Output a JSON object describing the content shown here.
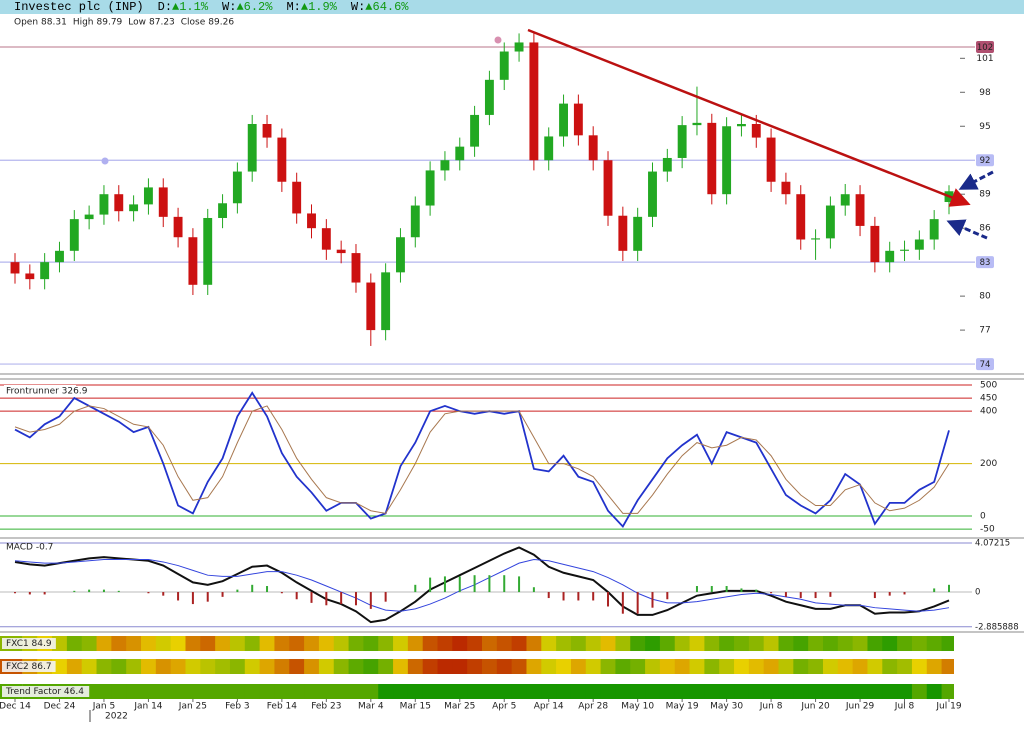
{
  "header": {
    "title": "Investec plc (INP)",
    "changes": [
      {
        "period": "D:",
        "change": "▲1.1%"
      },
      {
        "period": "W:",
        "change": "▲6.2%"
      },
      {
        "period": "M:",
        "change": "▲1.9%"
      },
      {
        "period": "W:",
        "change": "▲64.6%"
      }
    ],
    "change_color": "#119911"
  },
  "chart_data": [
    {
      "type": "candlestick",
      "ohlc_labels": [
        "Open",
        "High",
        "Low",
        "Close"
      ],
      "x_year": "2022",
      "categories": [
        "Dec 14",
        null,
        null,
        "Dec 24",
        null,
        null,
        "Jan 5",
        null,
        null,
        "Jan 14",
        null,
        null,
        "Jan 25",
        null,
        null,
        "Feb 3",
        null,
        null,
        "Feb 14",
        null,
        null,
        "Feb 23",
        null,
        null,
        "Mar 4",
        null,
        null,
        "Mar 15",
        null,
        null,
        "Mar 25",
        null,
        null,
        "Apr 5",
        null,
        null,
        "Apr 14",
        null,
        null,
        "Apr 28",
        null,
        null,
        "May 10",
        null,
        null,
        "May 19",
        null,
        null,
        "May 30",
        null,
        null,
        "Jun 8",
        null,
        null,
        "Jun 20",
        null,
        null,
        "Jun 29",
        null,
        null,
        "Jul 8",
        null,
        null,
        "Jul 19"
      ],
      "open": [
        83.0,
        82.0,
        81.5,
        83.0,
        84.0,
        86.8,
        87.2,
        89.0,
        87.5,
        88.1,
        89.6,
        87.0,
        85.2,
        81.0,
        86.9,
        88.2,
        91.0,
        95.2,
        94.0,
        90.1,
        87.3,
        86.0,
        84.1,
        83.8,
        81.2,
        77.0,
        82.1,
        85.2,
        88.0,
        91.1,
        92.0,
        93.2,
        96.0,
        99.1,
        101.6,
        102.4,
        92.0,
        94.1,
        97.0,
        94.2,
        92.0,
        87.1,
        84.0,
        87.0,
        91.0,
        92.2,
        95.1,
        95.3,
        89.0,
        95.0,
        95.2,
        94.0,
        90.1,
        89.0,
        85.0,
        85.1,
        88.0,
        89.0,
        86.2,
        83.0,
        84.0,
        84.1,
        85.0,
        88.31
      ],
      "high": [
        83.8,
        82.8,
        83.8,
        84.8,
        87.6,
        88.0,
        89.8,
        89.8,
        88.9,
        90.4,
        90.4,
        87.8,
        86.0,
        87.7,
        89.0,
        91.8,
        96.0,
        96.0,
        94.8,
        90.9,
        88.1,
        86.8,
        84.9,
        84.6,
        82.0,
        82.9,
        86.0,
        88.8,
        91.9,
        92.8,
        94.0,
        96.8,
        99.9,
        102.4,
        103.2,
        103.2,
        94.9,
        97.8,
        97.8,
        95.0,
        92.8,
        87.9,
        87.8,
        91.8,
        93.0,
        95.9,
        98.5,
        96.1,
        95.8,
        96.0,
        96.0,
        94.8,
        90.9,
        89.8,
        85.9,
        88.8,
        89.9,
        89.8,
        87.0,
        84.8,
        84.9,
        85.8,
        87.6,
        89.79
      ],
      "low": [
        81.1,
        80.6,
        80.6,
        82.1,
        83.1,
        85.9,
        86.3,
        86.6,
        86.6,
        87.2,
        86.1,
        84.3,
        80.1,
        80.1,
        86.0,
        87.3,
        90.1,
        93.1,
        89.2,
        86.4,
        85.1,
        83.2,
        82.9,
        80.3,
        75.6,
        76.1,
        81.2,
        84.3,
        87.1,
        90.2,
        91.1,
        92.3,
        95.1,
        98.2,
        100.7,
        91.1,
        91.1,
        93.2,
        93.3,
        91.1,
        86.2,
        83.1,
        83.1,
        86.1,
        90.1,
        91.3,
        94.2,
        88.1,
        88.1,
        94.1,
        93.1,
        89.2,
        88.1,
        84.1,
        83.2,
        84.2,
        87.1,
        85.3,
        82.1,
        82.1,
        83.1,
        83.2,
        84.1,
        87.23
      ],
      "close": [
        82.0,
        81.5,
        83.0,
        84.0,
        86.8,
        87.2,
        89.0,
        87.5,
        88.1,
        89.6,
        87.0,
        85.2,
        81.0,
        86.9,
        88.2,
        91.0,
        95.2,
        94.0,
        90.1,
        87.3,
        86.0,
        84.1,
        83.8,
        81.2,
        77.0,
        82.1,
        85.2,
        88.0,
        91.1,
        92.0,
        93.2,
        96.0,
        99.1,
        101.6,
        102.4,
        92.0,
        94.1,
        97.0,
        94.2,
        92.0,
        87.1,
        84.0,
        87.0,
        91.0,
        92.2,
        95.1,
        95.3,
        89.0,
        95.0,
        95.2,
        94.0,
        90.1,
        89.0,
        85.0,
        85.1,
        88.0,
        89.0,
        86.2,
        83.0,
        84.0,
        84.1,
        85.0,
        86.8,
        89.26
      ],
      "up_color": "#22a822",
      "down_color": "#cc1111",
      "ylim": [
        73.3,
        103.5
      ],
      "yticks": [
        77,
        80,
        86,
        89,
        95,
        98,
        101
      ],
      "levels": [
        {
          "value": 102,
          "color": "#c890a0",
          "box_color": "#b05070",
          "text_color": "#ffffff"
        },
        {
          "value": 92,
          "color": "#b4b6ee",
          "box_color": "#b8bcf5",
          "text_color": "#3030a0"
        },
        {
          "value": 83,
          "color": "#b4b6ee",
          "box_color": "#b8bcf5",
          "text_color": "#3030a0"
        },
        {
          "value": 74,
          "color": "#b4b6ee",
          "box_color": "#b8bcf5",
          "text_color": "#3030a0"
        }
      ]
    },
    {
      "type": "line",
      "title": "Frontrunner 326.9",
      "series": [
        {
          "color": "#2233cc",
          "values": [
            330,
            300,
            350,
            380,
            450,
            420,
            390,
            360,
            320,
            340,
            200,
            40,
            10,
            130,
            220,
            380,
            470,
            380,
            240,
            150,
            90,
            20,
            50,
            50,
            -10,
            10,
            190,
            280,
            400,
            420,
            400,
            390,
            400,
            390,
            400,
            180,
            170,
            230,
            150,
            130,
            20,
            -40,
            60,
            140,
            220,
            270,
            310,
            200,
            320,
            300,
            280,
            180,
            80,
            40,
            10,
            60,
            160,
            120,
            -30,
            50,
            50,
            100,
            130,
            326.9
          ]
        },
        {
          "color": "#a87850",
          "values": [
            340,
            320,
            330,
            350,
            400,
            420,
            410,
            380,
            350,
            340,
            270,
            150,
            60,
            70,
            150,
            280,
            400,
            420,
            330,
            220,
            140,
            70,
            50,
            50,
            20,
            10,
            100,
            200,
            320,
            390,
            400,
            400,
            400,
            400,
            400,
            300,
            200,
            200,
            180,
            150,
            80,
            10,
            10,
            80,
            160,
            230,
            280,
            260,
            270,
            300,
            290,
            230,
            140,
            80,
            40,
            40,
            100,
            120,
            50,
            20,
            30,
            60,
            110,
            200
          ]
        }
      ],
      "ylim": [
        -84,
        519
      ],
      "yticks": [
        -50,
        0,
        200,
        400,
        450,
        500
      ],
      "grid_colors": [
        "#30b030",
        "#30b030",
        "#d4b400",
        "#cc2020",
        "#cc2020",
        "#cc2020"
      ]
    },
    {
      "type": "macd",
      "title": "MACD -0.7",
      "series": [
        {
          "kind": "line",
          "color": "#111111",
          "values": [
            2.5,
            2.3,
            2.2,
            2.4,
            2.6,
            2.8,
            2.9,
            2.8,
            2.7,
            2.6,
            2.2,
            1.5,
            0.8,
            0.6,
            0.9,
            1.5,
            2.1,
            2.2,
            1.6,
            0.8,
            0.1,
            -0.6,
            -1.0,
            -1.6,
            -2.5,
            -2.3,
            -1.6,
            -0.8,
            0.2,
            0.8,
            1.4,
            2.0,
            2.6,
            3.2,
            3.7,
            3.1,
            2.1,
            1.6,
            1.3,
            1.0,
            0.0,
            -1.2,
            -1.9,
            -1.9,
            -1.5,
            -0.9,
            -0.3,
            -0.1,
            0.1,
            0.1,
            0.1,
            -0.3,
            -0.8,
            -1.1,
            -1.4,
            -1.4,
            -1.1,
            -1.1,
            -1.8,
            -1.7,
            -1.7,
            -1.6,
            -1.2,
            -0.7
          ]
        },
        {
          "kind": "line",
          "color": "#3344dd",
          "values": [
            2.6,
            2.5,
            2.4,
            2.4,
            2.5,
            2.6,
            2.7,
            2.7,
            2.7,
            2.7,
            2.5,
            2.2,
            1.8,
            1.4,
            1.3,
            1.3,
            1.5,
            1.7,
            1.7,
            1.4,
            1.0,
            0.5,
            0.0,
            -0.5,
            -1.1,
            -1.5,
            -1.6,
            -1.4,
            -1.0,
            -0.5,
            0.1,
            0.6,
            1.2,
            1.8,
            2.4,
            2.7,
            2.6,
            2.3,
            2.0,
            1.7,
            1.2,
            0.6,
            -0.1,
            -0.6,
            -0.9,
            -0.9,
            -0.8,
            -0.6,
            -0.4,
            -0.2,
            -0.1,
            -0.2,
            -0.4,
            -0.6,
            -0.9,
            -1.0,
            -1.1,
            -1.1,
            -1.3,
            -1.4,
            -1.5,
            -1.6,
            -1.5,
            -1.3
          ]
        },
        {
          "kind": "bar",
          "up_color": "#33aa33",
          "down_color": "#aa2222",
          "values": [
            -0.1,
            -0.2,
            -0.2,
            0,
            0.1,
            0.2,
            0.2,
            0.1,
            0,
            -0.1,
            -0.3,
            -0.7,
            -1.0,
            -0.8,
            -0.4,
            0.2,
            0.6,
            0.5,
            -0.1,
            -0.6,
            -0.9,
            -1.1,
            -1.0,
            -1.1,
            -1.4,
            -0.8,
            0,
            0.6,
            1.2,
            1.3,
            1.3,
            1.4,
            1.4,
            1.4,
            1.3,
            0.4,
            -0.5,
            -0.7,
            -0.7,
            -0.7,
            -1.2,
            -1.8,
            -1.8,
            -1.3,
            -0.6,
            0,
            0.5,
            0.5,
            0.5,
            0.3,
            0.2,
            -0.1,
            -0.4,
            -0.5,
            -0.5,
            -0.4,
            0,
            0,
            -0.5,
            -0.3,
            -0.2,
            0,
            0.3,
            0.6
          ]
        }
      ],
      "ylim": [
        -3.32,
        4.49
      ],
      "yticks": [
        -2.885888,
        0,
        4.07215
      ]
    },
    {
      "type": "heatmap",
      "colorscale": [
        "#b00000",
        "#e8d000",
        "#009000"
      ],
      "zlim": [
        0,
        100
      ],
      "rows": [
        {
          "name": "FXC1 84.9",
          "values": [
            70,
            60,
            50,
            60,
            75,
            70,
            40,
            30,
            35,
            45,
            55,
            50,
            30,
            25,
            40,
            60,
            70,
            45,
            30,
            25,
            35,
            45,
            60,
            75,
            80,
            70,
            55,
            35,
            20,
            15,
            10,
            15,
            25,
            20,
            15,
            30,
            55,
            65,
            70,
            60,
            45,
            65,
            85,
            90,
            80,
            65,
            55,
            70,
            80,
            75,
            70,
            60,
            80,
            85,
            75,
            80,
            75,
            70,
            85,
            90,
            80,
            75,
            80,
            85
          ]
        },
        {
          "name": "FXC2 86.7",
          "values": [
            20,
            35,
            45,
            50,
            40,
            55,
            70,
            75,
            65,
            45,
            35,
            40,
            55,
            60,
            65,
            70,
            55,
            40,
            30,
            20,
            35,
            55,
            70,
            80,
            85,
            75,
            45,
            25,
            15,
            10,
            10,
            15,
            20,
            15,
            20,
            40,
            55,
            50,
            40,
            55,
            70,
            80,
            75,
            60,
            45,
            40,
            55,
            70,
            60,
            50,
            45,
            40,
            60,
            75,
            70,
            55,
            45,
            40,
            55,
            70,
            65,
            50,
            40,
            30
          ]
        },
        {
          "name": "Trend Factor 46.4",
          "values": [
            82,
            82,
            82,
            82,
            82,
            82,
            82,
            82,
            82,
            82,
            82,
            82,
            82,
            82,
            82,
            82,
            82,
            82,
            82,
            82,
            82,
            82,
            82,
            82,
            82,
            95,
            95,
            95,
            95,
            95,
            95,
            95,
            95,
            95,
            95,
            95,
            95,
            95,
            95,
            95,
            95,
            95,
            95,
            95,
            95,
            95,
            95,
            95,
            95,
            95,
            95,
            95,
            95,
            95,
            95,
            95,
            95,
            95,
            95,
            95,
            95,
            82,
            95,
            82
          ]
        }
      ]
    }
  ]
}
